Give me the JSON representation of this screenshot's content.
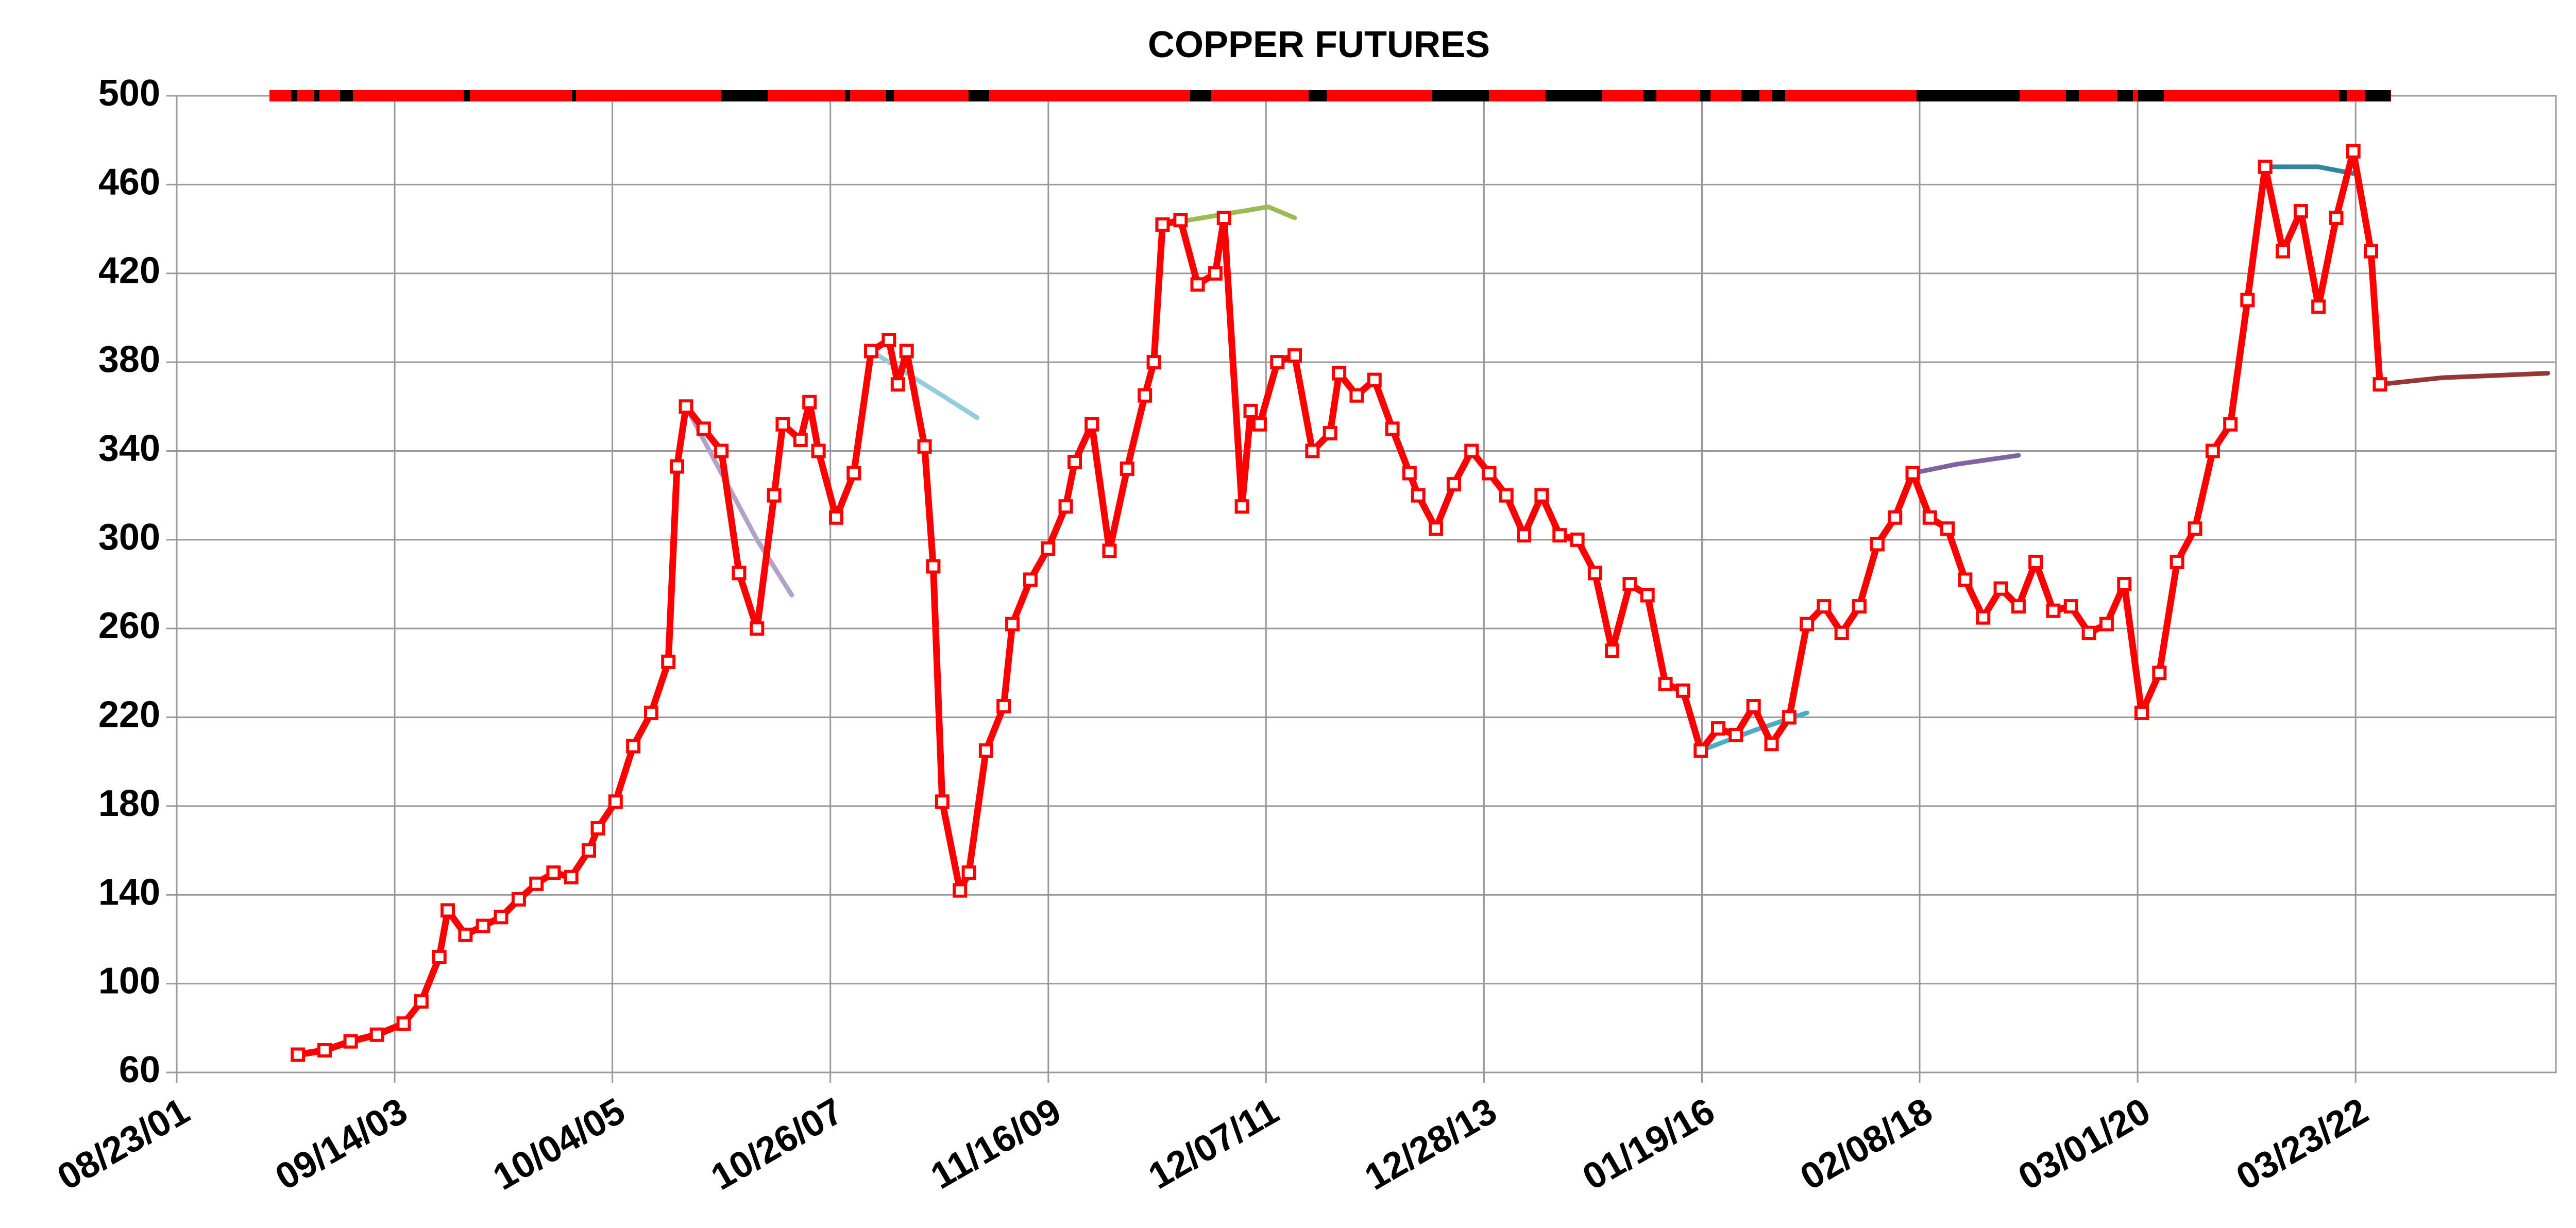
{
  "chart_data": {
    "type": "line",
    "title": "COPPER FUTURES",
    "xlim": [
      "08/23/01",
      "02/12/24"
    ],
    "xticks": [
      "08/23/01",
      "09/14/03",
      "10/04/05",
      "10/26/07",
      "11/16/09",
      "12/07/11",
      "12/28/13",
      "01/19/16",
      "02/08/18",
      "03/01/20",
      "03/23/22"
    ],
    "ylim": [
      60,
      500
    ],
    "yticks": [
      60,
      100,
      140,
      180,
      220,
      260,
      300,
      340,
      380,
      420,
      460,
      500
    ],
    "grid": true,
    "series": [
      {
        "color": "#ff0000",
        "x": [
          "10/15/02",
          "01/15/03",
          "04/15/03",
          "07/15/03",
          "10/15/03",
          "12/15/03",
          "02/15/04",
          "03/15/04",
          "05/15/04",
          "07/15/04",
          "09/15/04",
          "11/15/04",
          "01/15/05",
          "03/15/05",
          "05/15/05",
          "07/15/05",
          "08/15/05",
          "10/15/05",
          "12/15/05",
          "02/15/06",
          "04/15/06",
          "05/15/06",
          "06/15/06",
          "08/15/06",
          "10/15/06",
          "12/15/06",
          "02/15/07",
          "04/15/07",
          "05/15/07",
          "07/15/07",
          "08/15/07",
          "09/15/07",
          "11/15/07",
          "01/15/08",
          "03/15/08",
          "05/15/08",
          "06/15/08",
          "07/15/08",
          "09/15/08",
          "10/15/08",
          "11/15/08",
          "01/15/09",
          "02/15/09",
          "04/15/09",
          "06/15/09",
          "07/15/09",
          "09/15/09",
          "11/15/09",
          "01/15/10",
          "02/15/10",
          "04/15/10",
          "06/15/10",
          "08/15/10",
          "10/15/10",
          "11/15/10",
          "12/15/10",
          "02/15/11",
          "04/15/11",
          "06/15/11",
          "07/15/11",
          "09/15/11",
          "10/15/11",
          "11/15/11",
          "01/15/12",
          "03/15/12",
          "05/15/12",
          "07/15/12",
          "08/15/12",
          "10/15/12",
          "12/15/12",
          "02/15/13",
          "04/15/13",
          "05/15/13",
          "07/15/13",
          "09/15/13",
          "11/15/13",
          "01/15/14",
          "03/15/14",
          "05/15/14",
          "07/15/14",
          "09/15/14",
          "11/15/14",
          "01/15/15",
          "03/15/15",
          "05/15/15",
          "07/15/15",
          "09/15/15",
          "11/15/15",
          "01/15/16",
          "03/15/16",
          "05/15/16",
          "07/15/16",
          "09/15/16",
          "11/15/16",
          "01/15/17",
          "03/15/17",
          "05/15/17",
          "07/15/17",
          "09/15/17",
          "11/15/17",
          "01/15/18",
          "03/15/18",
          "05/15/18",
          "07/15/18",
          "09/15/18",
          "11/15/18",
          "01/15/19",
          "03/15/19",
          "05/15/19",
          "07/15/19",
          "09/15/19",
          "11/15/19",
          "01/15/20",
          "03/15/20",
          "05/15/20",
          "07/15/20",
          "09/15/20",
          "11/15/20",
          "01/15/21",
          "03/15/21",
          "05/15/21",
          "07/15/21",
          "09/15/21",
          "11/15/21",
          "01/15/22",
          "03/15/22",
          "05/15/22",
          "06/15/22"
        ],
        "values": [
          68,
          70,
          74,
          77,
          82,
          92,
          112,
          133,
          122,
          126,
          130,
          138,
          145,
          150,
          148,
          160,
          170,
          182,
          207,
          222,
          245,
          333,
          360,
          350,
          340,
          285,
          260,
          320,
          352,
          345,
          362,
          340,
          310,
          330,
          385,
          390,
          370,
          385,
          342,
          288,
          182,
          142,
          150,
          205,
          225,
          262,
          282,
          296,
          315,
          335,
          352,
          295,
          332,
          365,
          380,
          442,
          444,
          415,
          420,
          445,
          315,
          358,
          352,
          380,
          383,
          340,
          348,
          375,
          365,
          372,
          350,
          330,
          320,
          305,
          325,
          340,
          330,
          320,
          302,
          320,
          302,
          300,
          285,
          250,
          280,
          275,
          235,
          232,
          205,
          215,
          212,
          225,
          208,
          220,
          262,
          270,
          258,
          270,
          298,
          310,
          330,
          310,
          305,
          282,
          265,
          278,
          270,
          290,
          268,
          270,
          258,
          262,
          280,
          222,
          240,
          290,
          305,
          340,
          352,
          408,
          468,
          430,
          448,
          405,
          445,
          475,
          430,
          370
        ]
      },
      {
        "color": "#b3a2c7",
        "x": [
          "06/15/06",
          "10/15/06",
          "02/15/07",
          "06/15/07"
        ],
        "values": [
          360,
          330,
          300,
          275
        ]
      },
      {
        "color": "#93cddd",
        "x": [
          "03/15/08",
          "07/15/08",
          "11/15/08",
          "03/15/09"
        ],
        "values": [
          385,
          375,
          365,
          355
        ]
      },
      {
        "color": "#9bbb59",
        "x": [
          "12/15/10",
          "06/15/11",
          "12/15/11",
          "03/15/12"
        ],
        "values": [
          442,
          446,
          450,
          445
        ]
      },
      {
        "color": "#8064a2",
        "x": [
          "01/15/18",
          "06/15/18",
          "01/15/19"
        ],
        "values": [
          330,
          334,
          338
        ]
      },
      {
        "color": "#4bacc6",
        "x": [
          "01/15/16",
          "07/15/16",
          "01/15/17"
        ],
        "values": [
          205,
          214,
          222
        ]
      },
      {
        "color": "#31859c",
        "x": [
          "05/15/21",
          "11/15/21",
          "03/15/22"
        ],
        "values": [
          468,
          468,
          465
        ]
      },
      {
        "color": "#953735",
        "x": [
          "06/15/22",
          "01/15/23",
          "01/15/24"
        ],
        "values": [
          370,
          373,
          375
        ]
      }
    ]
  }
}
